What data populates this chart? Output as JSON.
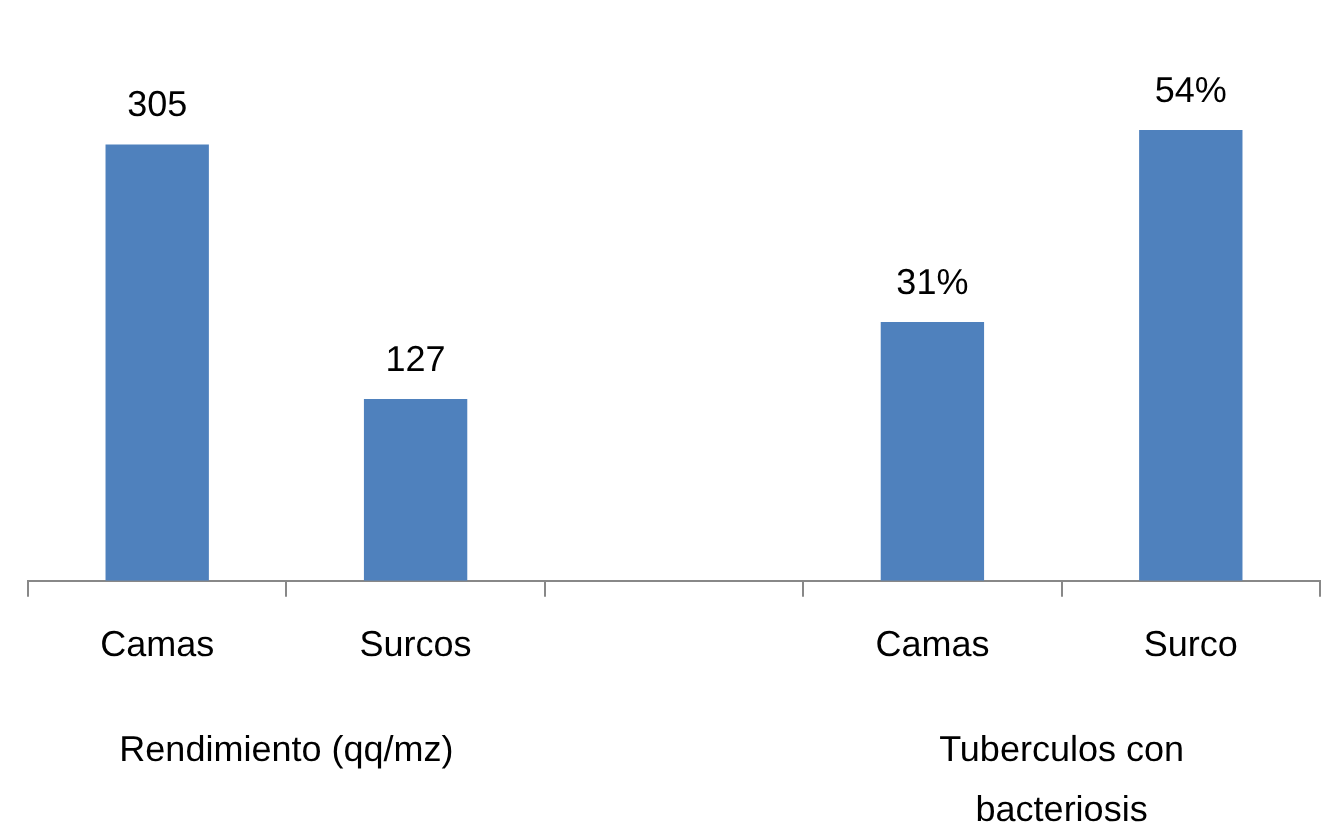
{
  "chart_data": {
    "type": "bar",
    "categories": [
      "Camas",
      "Surcos",
      null,
      "Camas",
      "Surco"
    ],
    "series": [
      {
        "color": "#4f81bd",
        "values": [
          305,
          127,
          null,
          null,
          null
        ]
      },
      {
        "color": "#4f81bd",
        "axis": "y2",
        "values": [
          null,
          null,
          null,
          31,
          54
        ],
        "value_labels": [
          null,
          null,
          null,
          "31%",
          "54%"
        ]
      }
    ],
    "tick_labels": "x",
    "data_labels": true,
    "grid": false,
    "legend": false,
    "annotations": [
      "Rendimiento (qq/mz)",
      "Tuberculos con bacteriosis"
    ]
  }
}
